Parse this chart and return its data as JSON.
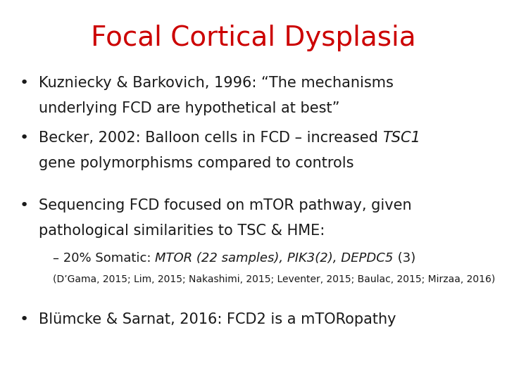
{
  "title": "Focal Cortical Dysplasia",
  "title_color": "#cc0000",
  "title_fontsize": 28,
  "background_color": "#ffffff",
  "text_color": "#1a1a1a",
  "bullet_color": "#1a1a1a",
  "bullet1_line1": "Kuzniecky & Barkovich, 1996: “The mechanisms",
  "bullet1_line2": "underlying FCD are hypothetical at best”",
  "bullet2_pre": "Becker, 2002: Balloon cells in FCD – increased ",
  "bullet2_italic": "TSC1",
  "bullet2_line2": "gene polymorphisms compared to controls",
  "bullet3_line1": "Sequencing FCD focused on mTOR pathway, given",
  "bullet3_line2": "pathological similarities to TSC & HME:",
  "sub_pre": "– 20% Somatic: ",
  "sub_italic": "MTOR (22 samples), PIK3(2), DEPDC5",
  "sub_post": " (3)",
  "citation": "(D’Gama, 2015; Lim, 2015; Nakashimi, 2015; Leventer, 2015; Baulac, 2015; Mirzaa, 2016)",
  "bullet4_line1": "Blümcke & Sarnat, 2016: FCD2 is a mTORopathy",
  "main_fontsize": 15,
  "sub_fontsize": 13,
  "citation_fontsize": 10,
  "font_family": "DejaVu Sans"
}
